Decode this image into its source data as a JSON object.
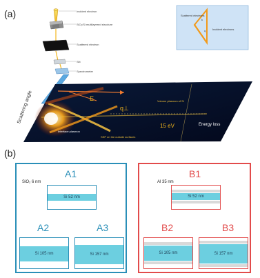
{
  "panel_a": {
    "letter": "(a)",
    "labels": {
      "incident": "Incident electron",
      "sample": "SiO₂/Si multilayered structure",
      "scattered": "Scattered electron",
      "slit": "Slit",
      "spectrometer": "Spectrometer",
      "energy_loss": "Energy loss",
      "ev": "15 eV",
      "q_symbol": "q⊥",
      "E_symbol": "E",
      "volume_plasmon": "Volume plasmon of Si",
      "ssp": "SSP on the outside surfaces",
      "interface": "Interface plasmon",
      "scattering_angle": "Scattering angle"
    },
    "inset": {
      "scattered": "Scattered electrons",
      "incident": "Incident electrons"
    }
  },
  "panel_b": {
    "letter": "(b)",
    "groupA": {
      "color": "#2a8fb8",
      "A1": {
        "title": "A1",
        "layers": [
          {
            "label": "Si 52 nm"
          }
        ],
        "oxide_label": "SiO₂ 6 nm"
      },
      "A2": {
        "title": "A2",
        "label": "Si 105 nm"
      },
      "A3": {
        "title": "A3",
        "label": "Si 157 nm"
      }
    },
    "groupB": {
      "color": "#e24b4b",
      "B1": {
        "title": "B1",
        "label": "Si 52 nm",
        "oxide_label": "Al 35 nm"
      },
      "B2": {
        "title": "B2",
        "label": "Si 105 nm"
      },
      "B3": {
        "title": "B3",
        "label": "Si 157 nm"
      }
    }
  }
}
